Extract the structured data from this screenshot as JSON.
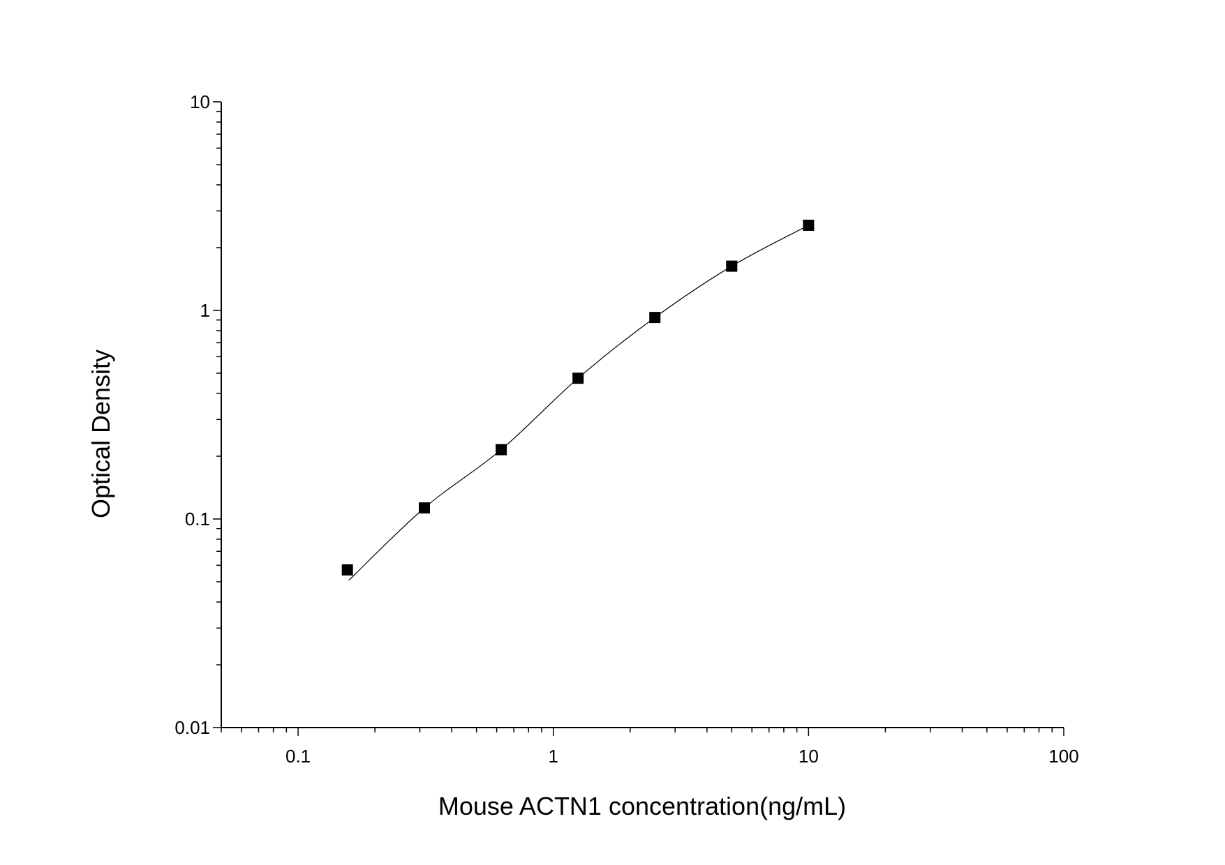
{
  "chart_data": {
    "type": "scatter",
    "title": "",
    "xlabel": "Mouse ACTN1 concentration(ng/mL)",
    "ylabel": "Optical Density",
    "x_scale": "log",
    "y_scale": "log",
    "xlim": [
      0.05,
      100
    ],
    "ylim": [
      0.01,
      10
    ],
    "x_ticks": [
      "0.1",
      "1",
      "10",
      "100"
    ],
    "y_ticks": [
      "0.01",
      "0.1",
      "1",
      "10"
    ],
    "grid": false,
    "legend": "none",
    "marker": "square",
    "color": "#000000",
    "points": {
      "x": [
        0.156,
        0.3125,
        0.625,
        1.25,
        2.5,
        5,
        10
      ],
      "y": [
        0.057,
        0.113,
        0.215,
        0.473,
        0.925,
        1.63,
        2.56
      ]
    },
    "fit_curve": true
  }
}
